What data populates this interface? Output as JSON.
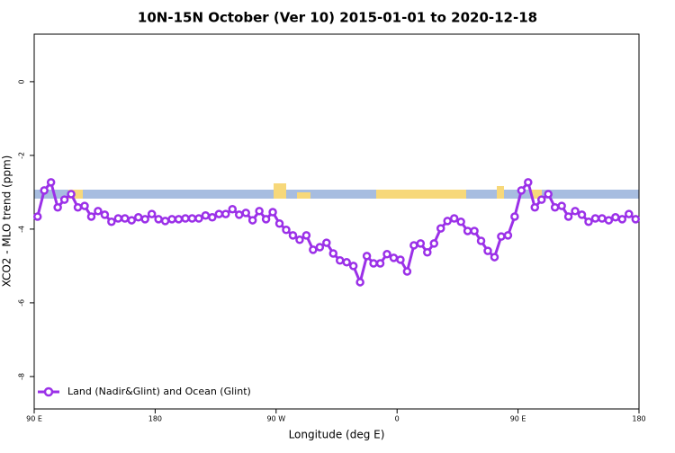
{
  "chart_data": {
    "type": "line",
    "title": "10N-15N October (Ver 10)   2015-01-01 to 2020-12-18",
    "x_label": "Longitude (deg E)",
    "y_label": "XCO2 - MLO trend (ppm)",
    "x": [
      92.5,
      97.5,
      102.5,
      107.5,
      112.5,
      117.5,
      122.5,
      127.5,
      132.5,
      137.5,
      142.5,
      147.5,
      152.5,
      157.5,
      162.5,
      167.5,
      172.5,
      177.5,
      182.5,
      187.5,
      192.5,
      197.5,
      202.5,
      207.5,
      212.5,
      217.5,
      222.5,
      227.5,
      232.5,
      237.5,
      242.5,
      247.5,
      252.5,
      257.5,
      262.5,
      267.5,
      272.5,
      277.5,
      282.5,
      287.5,
      292.5,
      297.5,
      302.5,
      307.5,
      312.5,
      317.5,
      322.5,
      327.5,
      332.5,
      337.5,
      342.5,
      347.5,
      352.5,
      357.5,
      362.5,
      367.5,
      372.5,
      377.5,
      382.5,
      387.5,
      392.5,
      397.5,
      402.5,
      407.5,
      412.5,
      417.5,
      422.5,
      427.5,
      432.5,
      437.5,
      442.5,
      447.5,
      452.5,
      457.5,
      462.5,
      467.5,
      472.5,
      477.5,
      482.5,
      487.5,
      492.5,
      497.5,
      502.5,
      507.5,
      512.5,
      517.5,
      522.5,
      527.5,
      532.5,
      537.5
    ],
    "series": [
      {
        "name": "Land (Nadir&Glint) and Ocean (Glint)",
        "color": "#9b30e8",
        "values": [
          -3.66,
          -2.95,
          -2.73,
          -3.41,
          -3.2,
          -3.05,
          -3.41,
          -3.37,
          -3.66,
          -3.51,
          -3.61,
          -3.8,
          -3.71,
          -3.71,
          -3.76,
          -3.68,
          -3.73,
          -3.59,
          -3.73,
          -3.78,
          -3.73,
          -3.73,
          -3.71,
          -3.71,
          -3.71,
          -3.63,
          -3.68,
          -3.59,
          -3.59,
          -3.46,
          -3.61,
          -3.56,
          -3.76,
          -3.51,
          -3.73,
          -3.54,
          -3.85,
          -4.02,
          -4.17,
          -4.29,
          -4.17,
          -4.56,
          -4.49,
          -4.37,
          -4.66,
          -4.85,
          -4.9,
          -5.0,
          -5.44,
          -4.73,
          -4.93,
          -4.93,
          -4.68,
          -4.78,
          -4.83,
          -5.15,
          -4.44,
          -4.39,
          -4.63,
          -4.39,
          -3.98,
          -3.78,
          -3.71,
          -3.8,
          -4.05,
          -4.05,
          -4.32,
          -4.59,
          -4.76,
          -4.2,
          -4.17,
          -3.66,
          -2.95,
          -2.73,
          -3.41,
          -3.2,
          -3.05,
          -3.41,
          -3.37,
          -3.66,
          -3.51,
          -3.61,
          -3.8,
          -3.71,
          -3.71,
          -3.76,
          -3.68,
          -3.73,
          -3.59,
          -3.73
        ]
      }
    ],
    "xlim": [
      90,
      540
    ],
    "xticks": [
      {
        "value": 90,
        "label": "90 E"
      },
      {
        "value": 180,
        "label": "180"
      },
      {
        "value": 270,
        "label": "90 W"
      },
      {
        "value": 360,
        "label": "0"
      },
      {
        "value": 450,
        "label": "90 E"
      },
      {
        "value": 540,
        "label": "180"
      }
    ],
    "ylim": [
      -8.88,
      1.29
    ],
    "yticks": [
      0,
      -2,
      -4,
      -6,
      -8
    ],
    "legend": "bottom-left"
  }
}
